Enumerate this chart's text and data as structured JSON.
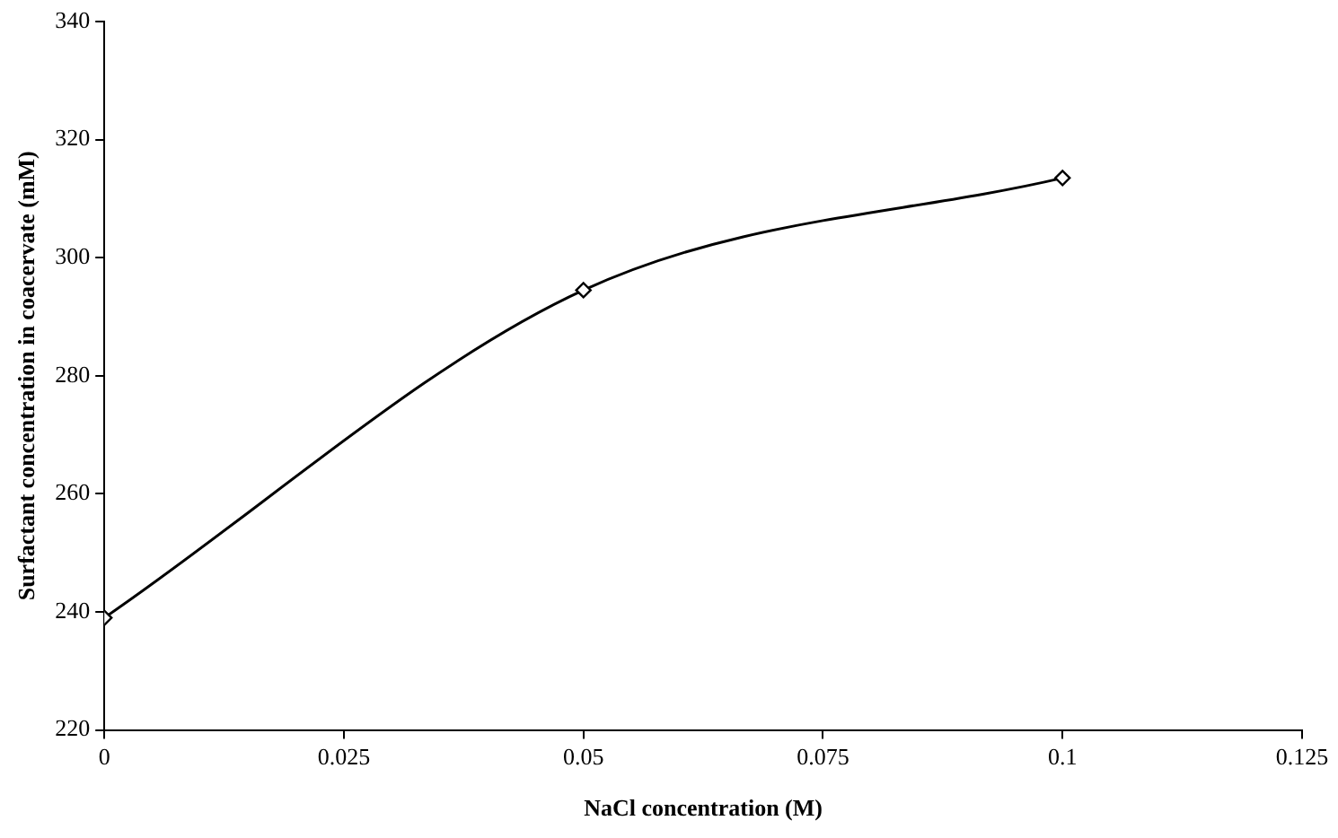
{
  "chart_data": {
    "type": "line",
    "xlabel": "NaCl concentration (M)",
    "ylabel": "Surfactant concentration in coacervate (mM)",
    "x": [
      0,
      0.05,
      0.1
    ],
    "series": [
      {
        "color": "#000000",
        "values": [
          239,
          294.5,
          313.5
        ]
      }
    ],
    "xlim": [
      0,
      0.125
    ],
    "xticks": [
      0,
      0.025,
      0.05,
      0.075,
      0.1,
      0.125
    ],
    "ylim": [
      220,
      340
    ],
    "yticks": [
      220,
      240,
      260,
      280,
      300,
      320,
      340
    ],
    "grid": false,
    "legend": false,
    "marker": "diamond",
    "line_style": "solid"
  }
}
